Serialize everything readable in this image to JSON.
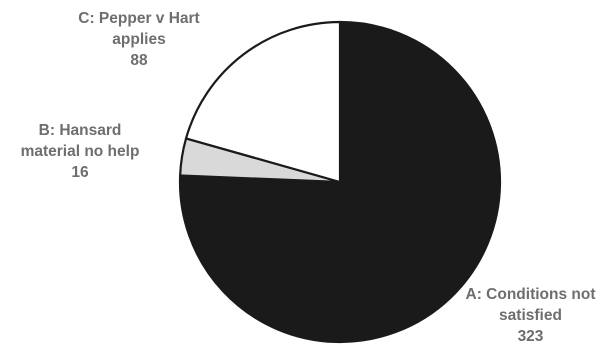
{
  "chart_data": {
    "type": "pie",
    "title": "",
    "start": "top",
    "direction": "clockwise",
    "slices": [
      {
        "key": "a",
        "label_lines": [
          "A: Conditions not",
          "satisfied"
        ],
        "value": 323,
        "value_text": "323",
        "color": "#1a1a1a"
      },
      {
        "key": "b",
        "label_lines": [
          "B: Hansard",
          "material no help"
        ],
        "value": 16,
        "value_text": "16",
        "color": "#d9d9d9"
      },
      {
        "key": "c",
        "label_lines": [
          "C: Pepper v Hart",
          "applies"
        ],
        "value": 88,
        "value_text": "88",
        "color": "#ffffff"
      }
    ]
  }
}
